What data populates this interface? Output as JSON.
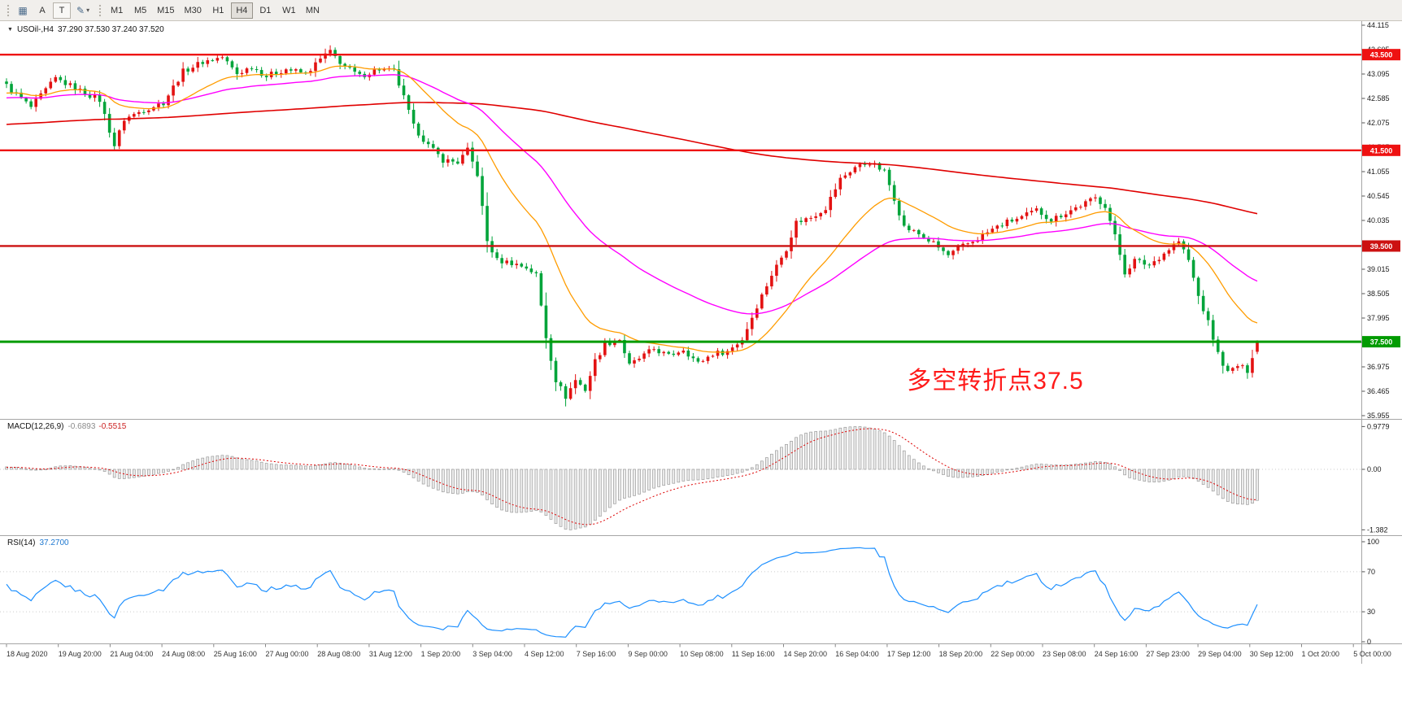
{
  "toolbar": {
    "icons": {
      "chart_grid": "▦",
      "pencil": "✎",
      "chevron_down": "▾",
      "collapse_triangle": "▼"
    },
    "a_label": "A",
    "t_label": "T",
    "timeframes": [
      "M1",
      "M5",
      "M15",
      "M30",
      "H1",
      "H4",
      "D1",
      "W1",
      "MN"
    ],
    "active_timeframe": "H4"
  },
  "main_chart": {
    "symbol_line": "USOil-,H4",
    "ohlc_line": "37.290 37.530 37.240 37.520",
    "annotation": {
      "text": "多空转折点37.5",
      "color": "#ff1a1a"
    },
    "price_axis": {
      "min": 35.955,
      "max": 44.115,
      "labels": [
        "44.115",
        "43.605",
        "43.095",
        "42.585",
        "42.075",
        "41.565",
        "41.055",
        "40.545",
        "40.035",
        "39.525",
        "39.015",
        "38.505",
        "37.995",
        "37.485",
        "36.975",
        "36.465",
        "35.955"
      ]
    },
    "hlines": [
      {
        "price": 43.5,
        "label": "43.500",
        "color": "#ee1111",
        "width": 2.4
      },
      {
        "price": 41.5,
        "label": "41.500",
        "color": "#ee1111",
        "width": 2.4
      },
      {
        "price": 39.5,
        "label": "39.500",
        "color": "#cc1111",
        "width": 2.4
      },
      {
        "price": 37.5,
        "label": "37.500",
        "color": "#009b00",
        "width": 3
      }
    ],
    "colors": {
      "bull": "#e31212",
      "bear": "#00a43a",
      "ma_fast": "#ff9c00",
      "ma_mid": "#ff00ff",
      "ma_slow": "#e00000",
      "macd_signal": "#dd0000",
      "rsi": "#1e90ff",
      "annotation": "#ff1a1a"
    }
  },
  "macd": {
    "label": "MACD(12,26,9)",
    "value_main": "-0.6893",
    "value_signal": "-0.5515",
    "axis": [
      {
        "value": 0.9779,
        "label": "0.9779"
      },
      {
        "value": 0,
        "label": "0.00"
      },
      {
        "value": -1.382,
        "label": "-1.382"
      }
    ]
  },
  "rsi": {
    "label": "RSI(14)",
    "value": "37.2700",
    "levels": [
      {
        "value": 100,
        "label": "100",
        "dotted": false
      },
      {
        "value": 70,
        "label": "70",
        "dotted": true
      },
      {
        "value": 30,
        "label": "30",
        "dotted": true
      },
      {
        "value": 0,
        "label": "0",
        "dotted": false
      }
    ]
  },
  "time_axis": {
    "labels": [
      "18 Aug 2020",
      "19 Aug 20:00",
      "21 Aug 04:00",
      "24 Aug 08:00",
      "25 Aug 16:00",
      "27 Aug 00:00",
      "28 Aug 08:00",
      "31 Aug 12:00",
      "1 Sep 20:00",
      "3 Sep 04:00",
      "4 Sep 12:00",
      "7 Sep 16:00",
      "9 Sep 00:00",
      "10 Sep 08:00",
      "11 Sep 16:00",
      "14 Sep 20:00",
      "16 Sep 04:00",
      "17 Sep 12:00",
      "18 Sep 20:00",
      "22 Sep 00:00",
      "23 Sep 08:00",
      "24 Sep 16:00",
      "27 Sep 23:00",
      "29 Sep 04:00",
      "30 Sep 12:00",
      "1 Oct 20:00",
      "5 Oct 00:00"
    ]
  },
  "chart_data": {
    "type": "candlestick",
    "symbol": "USOil-",
    "timeframe": "H4",
    "candles": 256,
    "ohlc_current": {
      "open": 37.29,
      "high": 37.53,
      "low": 37.24,
      "close": 37.52
    },
    "price_range": [
      35.955,
      44.115
    ],
    "price_waypoints": [
      [
        0,
        42.85
      ],
      [
        5,
        42.4
      ],
      [
        10,
        43.0
      ],
      [
        15,
        42.75
      ],
      [
        19,
        42.55
      ],
      [
        22,
        41.6
      ],
      [
        24,
        42.15
      ],
      [
        28,
        42.35
      ],
      [
        32,
        42.5
      ],
      [
        36,
        43.15
      ],
      [
        40,
        43.35
      ],
      [
        44,
        43.45
      ],
      [
        47,
        43.1
      ],
      [
        50,
        43.25
      ],
      [
        53,
        43.05
      ],
      [
        57,
        43.2
      ],
      [
        61,
        43.1
      ],
      [
        65,
        43.5
      ],
      [
        66,
        43.55
      ],
      [
        69,
        43.25
      ],
      [
        72,
        43.05
      ],
      [
        76,
        43.2
      ],
      [
        79,
        43.15
      ],
      [
        81,
        42.6
      ],
      [
        83,
        42.0
      ],
      [
        86,
        41.6
      ],
      [
        89,
        41.3
      ],
      [
        92,
        41.25
      ],
      [
        94,
        41.5
      ],
      [
        96,
        41.0
      ],
      [
        98,
        39.6
      ],
      [
        100,
        39.2
      ],
      [
        103,
        39.15
      ],
      [
        106,
        39.05
      ],
      [
        108,
        38.9
      ],
      [
        110,
        37.6
      ],
      [
        112,
        36.7
      ],
      [
        114,
        36.35
      ],
      [
        116,
        36.7
      ],
      [
        118,
        36.5
      ],
      [
        120,
        37.1
      ],
      [
        122,
        37.45
      ],
      [
        125,
        37.55
      ],
      [
        127,
        37.0
      ],
      [
        129,
        37.15
      ],
      [
        132,
        37.35
      ],
      [
        135,
        37.2
      ],
      [
        138,
        37.35
      ],
      [
        141,
        37.05
      ],
      [
        144,
        37.25
      ],
      [
        147,
        37.3
      ],
      [
        150,
        37.55
      ],
      [
        153,
        38.25
      ],
      [
        156,
        38.9
      ],
      [
        159,
        39.45
      ],
      [
        161,
        40.0
      ],
      [
        164,
        40.1
      ],
      [
        167,
        40.3
      ],
      [
        170,
        40.9
      ],
      [
        173,
        41.15
      ],
      [
        176,
        41.25
      ],
      [
        179,
        41.05
      ],
      [
        181,
        40.5
      ],
      [
        183,
        39.9
      ],
      [
        186,
        39.75
      ],
      [
        189,
        39.55
      ],
      [
        192,
        39.3
      ],
      [
        195,
        39.5
      ],
      [
        198,
        39.65
      ],
      [
        201,
        39.85
      ],
      [
        204,
        40.0
      ],
      [
        207,
        40.1
      ],
      [
        210,
        40.25
      ],
      [
        213,
        40.05
      ],
      [
        216,
        40.2
      ],
      [
        219,
        40.35
      ],
      [
        222,
        40.5
      ],
      [
        224,
        40.35
      ],
      [
        226,
        39.7
      ],
      [
        228,
        38.95
      ],
      [
        230,
        39.2
      ],
      [
        233,
        39.1
      ],
      [
        236,
        39.35
      ],
      [
        239,
        39.6
      ],
      [
        241,
        39.2
      ],
      [
        243,
        38.45
      ],
      [
        245,
        37.9
      ],
      [
        247,
        37.25
      ],
      [
        249,
        36.85
      ],
      [
        251,
        37.0
      ],
      [
        253,
        36.9
      ],
      [
        255,
        37.52
      ]
    ],
    "prehistory": {
      "bars": 260,
      "from": 41.2,
      "to": 42.75
    },
    "moving_averages": [
      {
        "type": "ema",
        "period": 21,
        "color_key": "ma_fast"
      },
      {
        "type": "ema",
        "period": 55,
        "color_key": "ma_mid"
      },
      {
        "type": "sma",
        "period": 240,
        "color_key": "ma_slow"
      }
    ],
    "macd": {
      "fast": 12,
      "slow": 26,
      "signal": 9,
      "current_hist": -0.6893,
      "current_signal": -0.5515,
      "range": [
        -1.382,
        0.9779
      ]
    },
    "rsi": {
      "period": 14,
      "current": 37.27,
      "range": [
        0,
        100
      ],
      "levels": [
        70,
        30
      ]
    },
    "hline_levels": [
      43.5,
      41.5,
      39.5,
      37.5
    ],
    "annotation": "多空转折点37.5"
  }
}
